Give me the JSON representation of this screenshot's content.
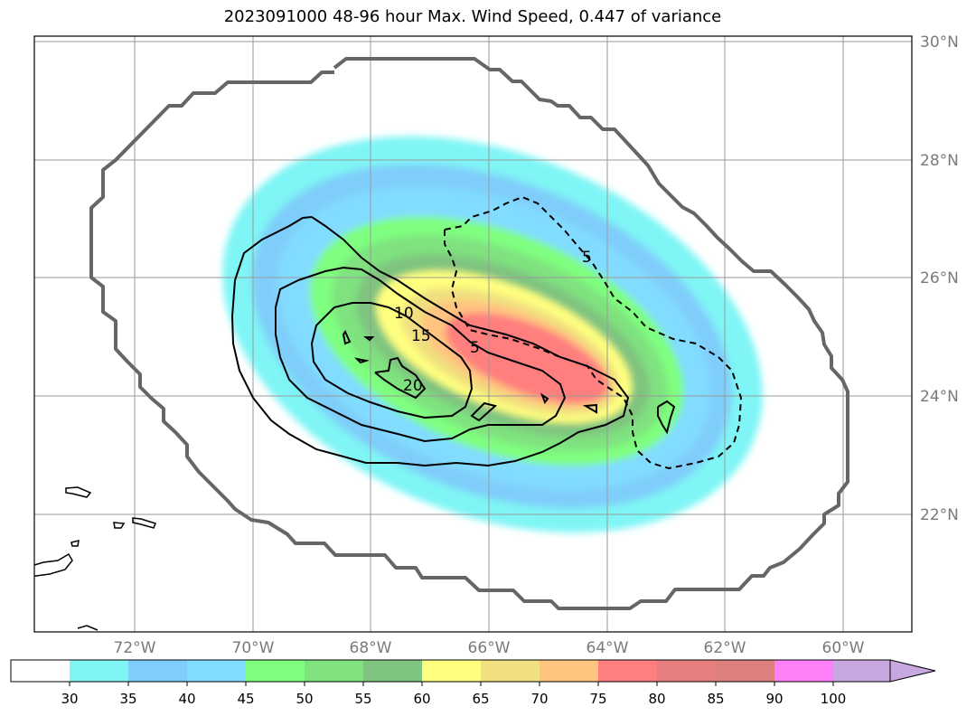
{
  "title": "2023091000 48-96 hour Max. Wind Speed, 0.447 of variance",
  "lat_labels": [
    "30°N",
    "28°N",
    "26°N",
    "24°N",
    "22°N"
  ],
  "lon_labels": [
    "72°W",
    "70°W",
    "68°W",
    "66°W",
    "64°W",
    "62°W",
    "60°W"
  ],
  "contour_labels": [
    "5",
    "10",
    "15",
    "5",
    "20"
  ],
  "colorbar": {
    "ticks": [
      "30",
      "35",
      "40",
      "45",
      "50",
      "55",
      "60",
      "65",
      "70",
      "75",
      "80",
      "85",
      "90",
      "100"
    ],
    "colors": [
      "#ffffff",
      "#7ff5f5",
      "#7fcdfa",
      "#82dcff",
      "#7fff7f",
      "#7fe27f",
      "#7fc47f",
      "#ffff7f",
      "#f0e07f",
      "#ffc47f",
      "#ff7f7f",
      "#e87f7f",
      "#dd7f7f",
      "#ff7ff8",
      "#c8a8e0"
    ]
  },
  "colors": {
    "boundary": "#666666",
    "grid": "#9a9a9a",
    "contour": "#000000"
  }
}
